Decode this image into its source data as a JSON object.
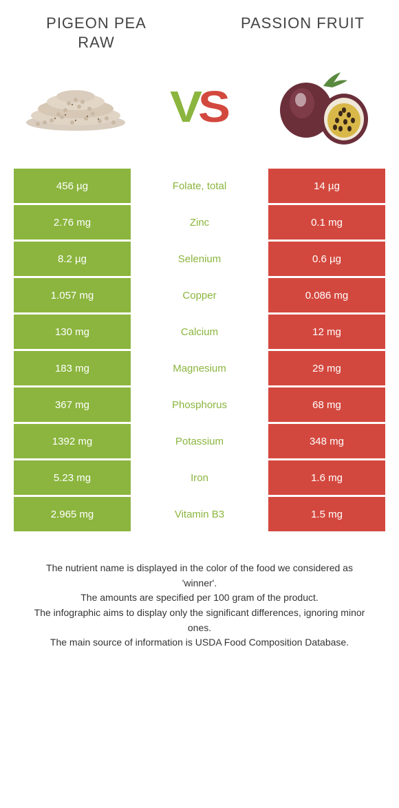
{
  "foods": {
    "left": {
      "name": "PIGEON PEA RAW",
      "color": "#8bb53e"
    },
    "right": {
      "name": "PASSION FRUIT",
      "color": "#d3483e"
    }
  },
  "vs_label": "VS",
  "rows": [
    {
      "left": "456 µg",
      "label": "Folate, total",
      "right": "14 µg",
      "winner": "left"
    },
    {
      "left": "2.76 mg",
      "label": "Zinc",
      "right": "0.1 mg",
      "winner": "left"
    },
    {
      "left": "8.2 µg",
      "label": "Selenium",
      "right": "0.6 µg",
      "winner": "left"
    },
    {
      "left": "1.057 mg",
      "label": "Copper",
      "right": "0.086 mg",
      "winner": "left"
    },
    {
      "left": "130 mg",
      "label": "Calcium",
      "right": "12 mg",
      "winner": "left"
    },
    {
      "left": "183 mg",
      "label": "Magnesium",
      "right": "29 mg",
      "winner": "left"
    },
    {
      "left": "367 mg",
      "label": "Phosphorus",
      "right": "68 mg",
      "winner": "left"
    },
    {
      "left": "1392 mg",
      "label": "Potassium",
      "right": "348 mg",
      "winner": "left"
    },
    {
      "left": "5.23 mg",
      "label": "Iron",
      "right": "1.6 mg",
      "winner": "left"
    },
    {
      "left": "2.965 mg",
      "label": "Vitamin B3",
      "right": "1.5 mg",
      "winner": "left"
    }
  ],
  "footer_lines": [
    "The nutrient name is displayed in the color of the food we considered as 'winner'.",
    "The amounts are specified per 100 gram of the product.",
    "The infographic aims to display only the significant differences, ignoring minor ones.",
    "The main source of information is USDA Food Composition Database."
  ]
}
